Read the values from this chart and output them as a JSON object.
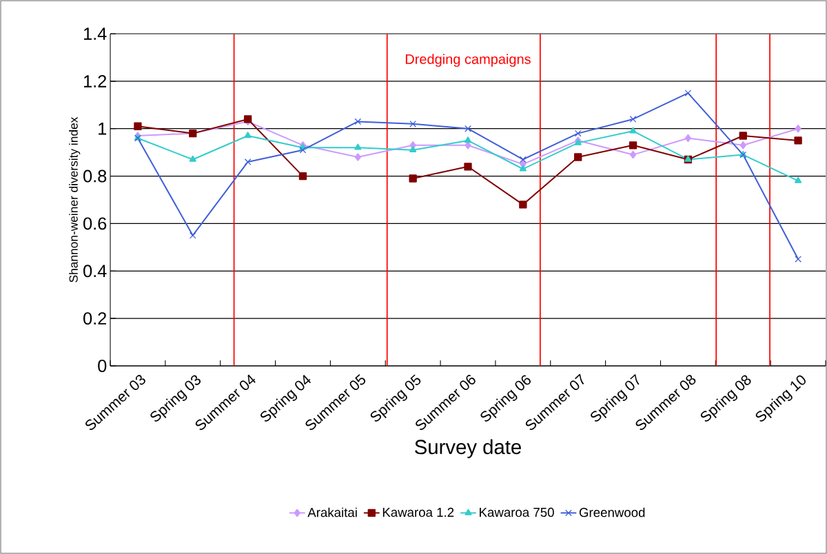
{
  "chart_data": {
    "type": "line",
    "xlabel": "Survey date",
    "ylabel": "Shannon-weiner diversity index",
    "categories": [
      "Summer 03",
      "Spring 03",
      "Summer 04",
      "Spring 04",
      "Summer 05",
      "Spring 05",
      "Summer 06",
      "Spring 06",
      "Summer 07",
      "Spring 07",
      "Summer 08",
      "Spring 08",
      "Spring 10"
    ],
    "series": [
      {
        "name": "Arakaitai",
        "color": "#cc99ff",
        "marker": "diamond",
        "values": [
          0.97,
          0.98,
          1.03,
          0.93,
          0.88,
          0.93,
          0.93,
          0.85,
          0.95,
          0.89,
          0.96,
          0.93,
          1.0
        ]
      },
      {
        "name": "Kawaroa 1.2",
        "color": "#800000",
        "marker": "square",
        "values": [
          1.01,
          0.98,
          1.04,
          0.8,
          null,
          0.79,
          0.84,
          0.68,
          0.88,
          0.93,
          0.87,
          0.97,
          0.95
        ]
      },
      {
        "name": "Kawaroa 750",
        "color": "#33cccc",
        "marker": "triangle",
        "values": [
          0.96,
          0.87,
          0.97,
          0.92,
          0.92,
          0.91,
          0.95,
          0.83,
          0.94,
          0.99,
          0.87,
          0.89,
          0.78
        ]
      },
      {
        "name": "Greenwood",
        "color": "#3f5fd8",
        "marker": "cross",
        "values": [
          0.96,
          0.55,
          0.86,
          0.91,
          1.03,
          1.02,
          1.0,
          0.87,
          0.98,
          1.04,
          1.15,
          0.89,
          0.45
        ]
      }
    ],
    "ylim": [
      0,
      1.4
    ],
    "yticks": [
      0,
      0.2,
      0.4,
      0.6,
      0.8,
      1,
      1.2,
      1.4
    ],
    "annotations": [
      "Dredging campaigns"
    ],
    "grid": "y",
    "legend": "bottom"
  }
}
